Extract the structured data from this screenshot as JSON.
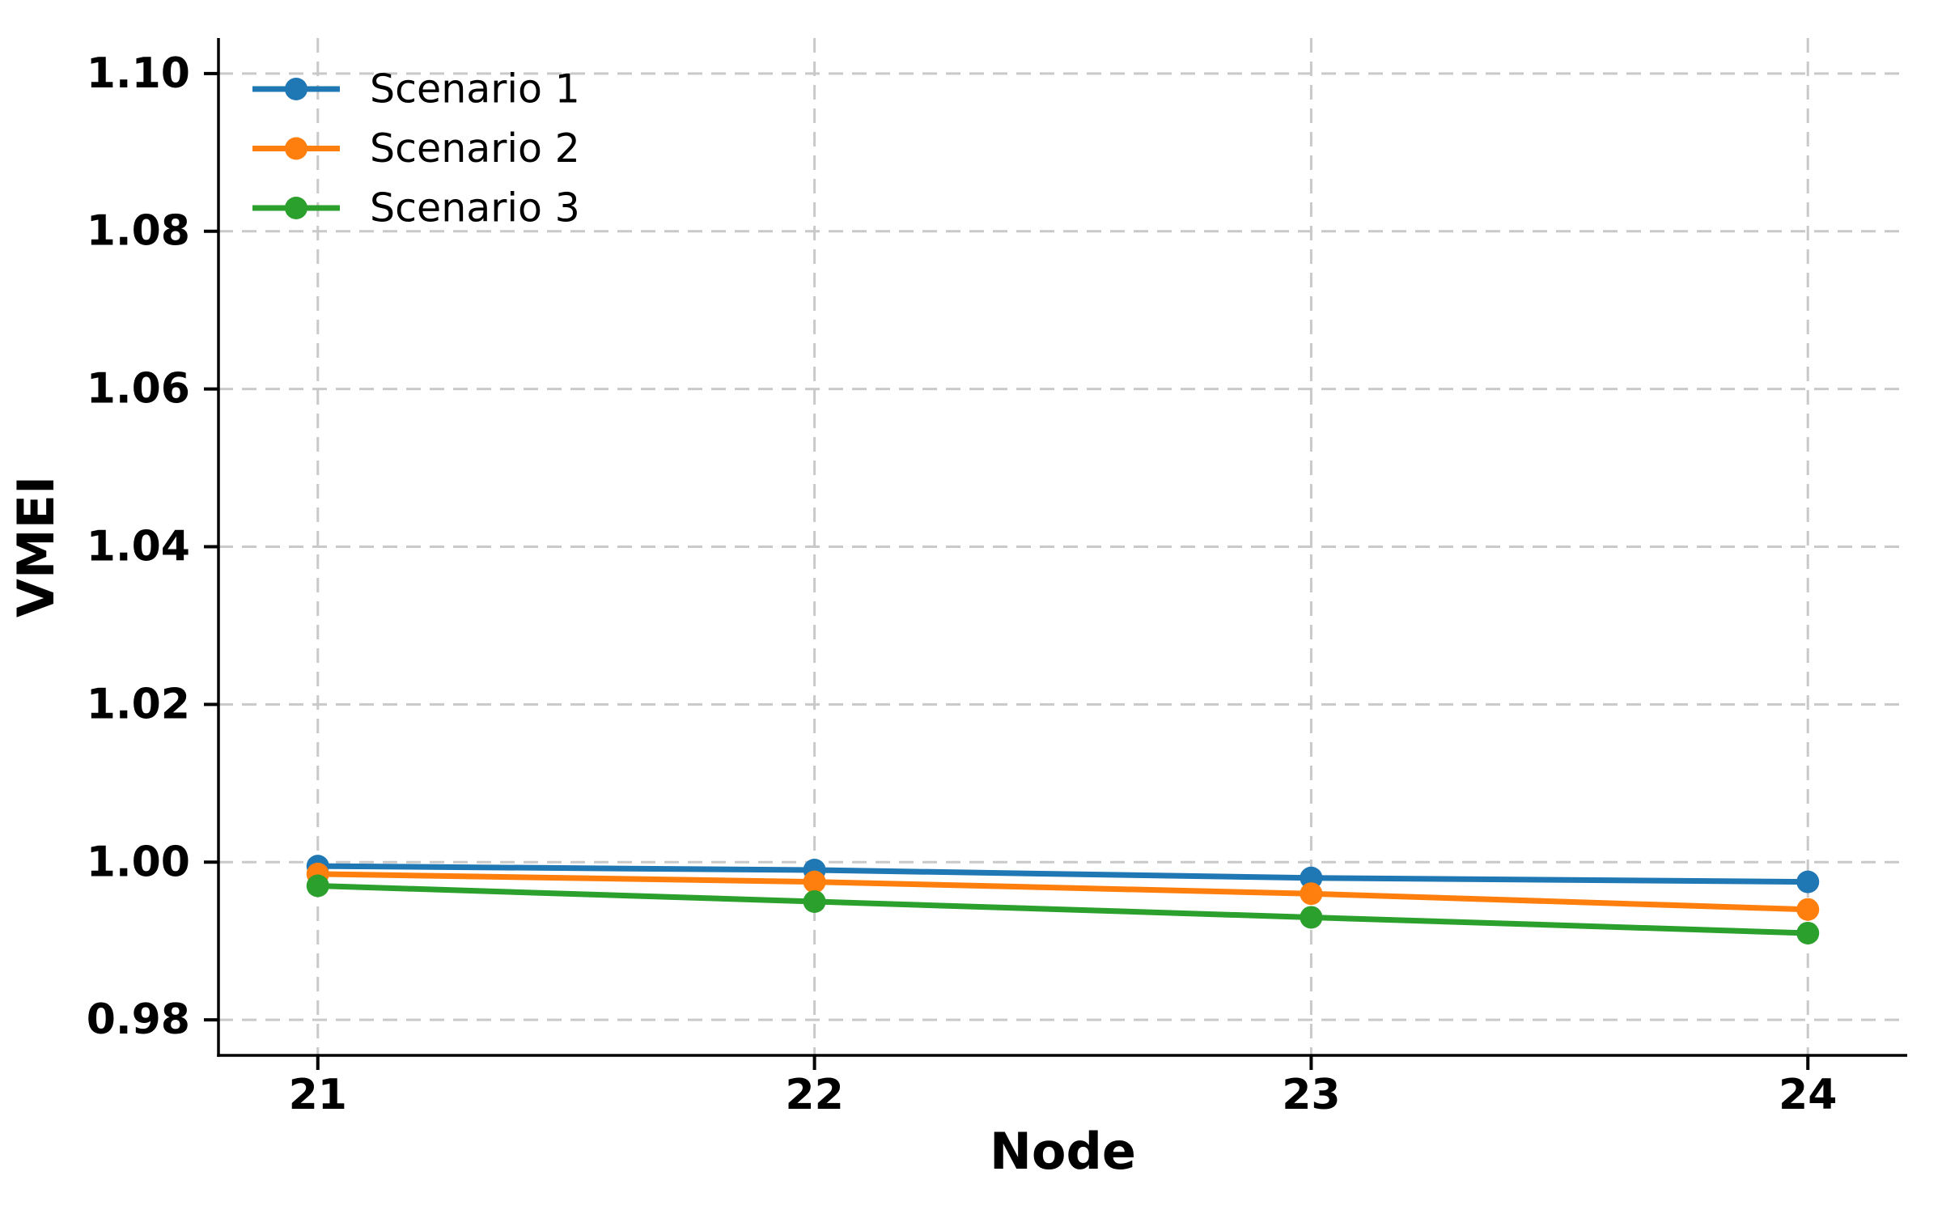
{
  "figure": {
    "background": "#ffffff",
    "axis_color": "#000000",
    "grid_color": "#c9c9c9"
  },
  "chart_data": {
    "type": "line",
    "title": "",
    "xlabel": "Node",
    "ylabel": "VMEI",
    "x": [
      21,
      22,
      23,
      24
    ],
    "xtick_labels": [
      "21",
      "22",
      "23",
      "24"
    ],
    "yticks": [
      0.98,
      1.0,
      1.02,
      1.04,
      1.06,
      1.08,
      1.1
    ],
    "ytick_labels": [
      "0.98",
      "1.00",
      "1.02",
      "1.04",
      "1.06",
      "1.08",
      "1.10"
    ],
    "xlim": [
      20.8,
      24.2
    ],
    "ylim": [
      0.9755,
      1.1045
    ],
    "grid": true,
    "grid_style": "dashed",
    "legend": {
      "position": "upper-left",
      "frame": false
    },
    "series": [
      {
        "name": "Scenario 1",
        "color": "#1f77b4",
        "marker": "circle",
        "values": [
          0.9995,
          0.999,
          0.998,
          0.9975
        ]
      },
      {
        "name": "Scenario 2",
        "color": "#ff7f0e",
        "marker": "circle",
        "values": [
          0.9985,
          0.9975,
          0.996,
          0.994
        ]
      },
      {
        "name": "Scenario 3",
        "color": "#2ca02c",
        "marker": "circle",
        "values": [
          0.997,
          0.995,
          0.993,
          0.991
        ]
      }
    ]
  }
}
